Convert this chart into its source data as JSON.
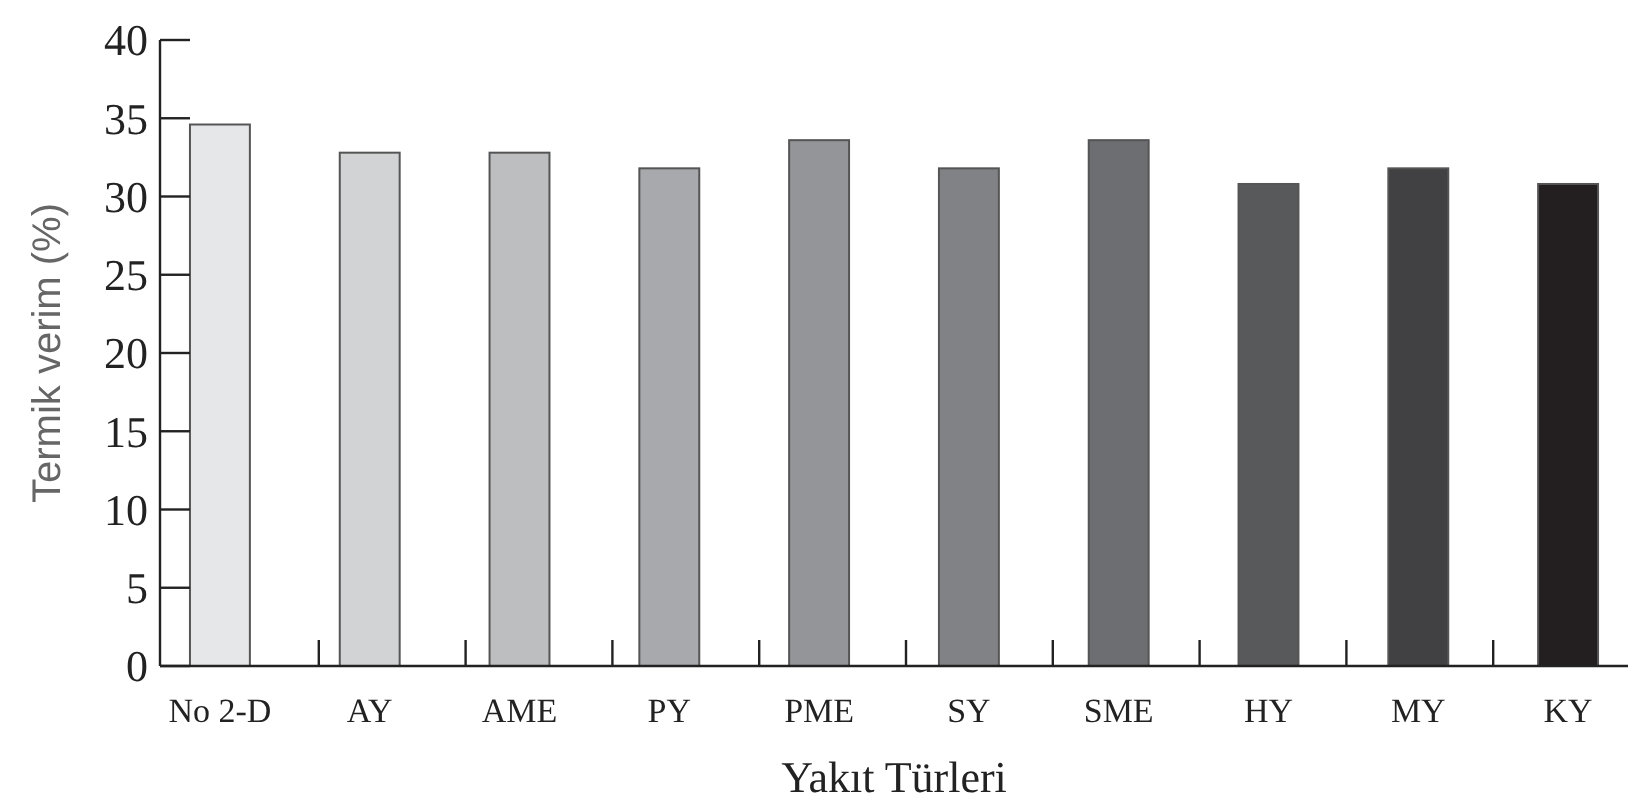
{
  "chart_data": {
    "type": "bar",
    "xlabel": "Yakıt Türleri",
    "ylabel": "Termik verim (%)",
    "categories": [
      "No 2-D",
      "AY",
      "AME",
      "PY",
      "PME",
      "SY",
      "SME",
      "HY",
      "MY",
      "KY"
    ],
    "values": [
      34.6,
      32.8,
      32.8,
      31.8,
      33.6,
      31.8,
      33.6,
      30.8,
      31.8,
      30.8
    ],
    "colors": [
      "#e6e7e8",
      "#d1d3d4",
      "#bcbec0",
      "#a7a9ac",
      "#939598",
      "#808285",
      "#6d6e71",
      "#58595b",
      "#414042",
      "#231f20"
    ],
    "ylim": [
      0,
      40
    ],
    "yticks": [
      0,
      5,
      10,
      15,
      20,
      25,
      30,
      35,
      40
    ]
  }
}
